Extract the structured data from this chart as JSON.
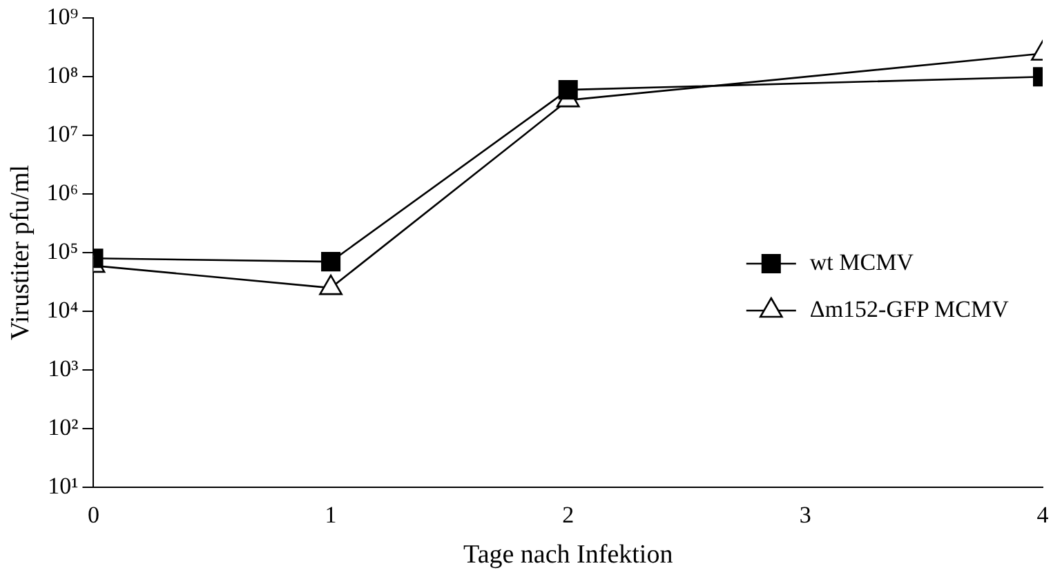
{
  "chart_data": {
    "type": "line",
    "xlabel": "Tage nach Infektion",
    "ylabel": "Virustiter pfu/ml",
    "log": "y",
    "x": [
      0,
      1,
      2,
      4
    ],
    "series": [
      {
        "name": "wt MCMV",
        "color": "#000000",
        "marker": "square",
        "values": [
          80000,
          70000,
          60000000,
          100000000
        ]
      },
      {
        "name": "Δm152-GFP MCMV",
        "color": "#000000",
        "marker": "triangle",
        "values": [
          60000,
          25000,
          40000000,
          250000000
        ]
      }
    ],
    "xlim": [
      0,
      4
    ],
    "xticks": [
      0,
      1,
      2,
      3,
      4
    ],
    "ylim": [
      10,
      1000000000
    ],
    "yticks": [
      {
        "value": 10,
        "label": "10¹"
      },
      {
        "value": 100,
        "label": "10²"
      },
      {
        "value": 1000,
        "label": "10³"
      },
      {
        "value": 10000,
        "label": "10⁴"
      },
      {
        "value": 100000,
        "label": "10⁵"
      },
      {
        "value": 1000000,
        "label": "10⁶"
      },
      {
        "value": 10000000,
        "label": "10⁷"
      },
      {
        "value": 100000000,
        "label": "10⁸"
      },
      {
        "value": 1000000000,
        "label": "10⁹"
      }
    ],
    "grid": false,
    "legend": "right"
  }
}
